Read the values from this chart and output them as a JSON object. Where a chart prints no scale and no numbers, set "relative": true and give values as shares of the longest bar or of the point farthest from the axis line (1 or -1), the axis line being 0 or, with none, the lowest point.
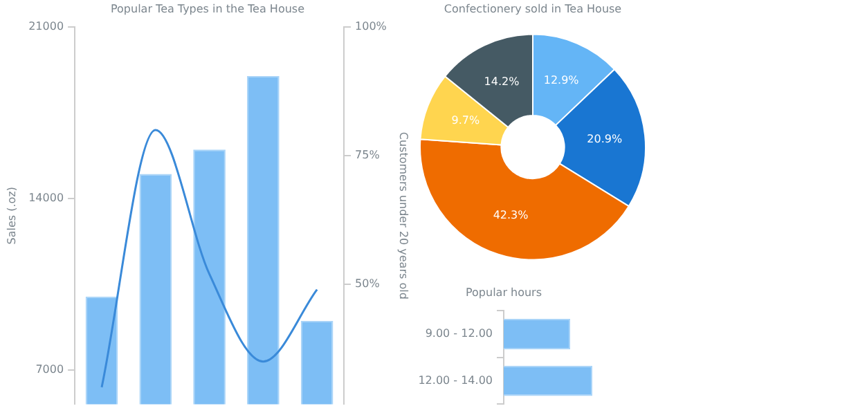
{
  "chart_data": [
    {
      "type": "bar",
      "title": "Popular Tea Types in the Tea House",
      "ylabel": "Sales (.oz)",
      "y2label": "Customers under 20 years old",
      "categories": [
        null,
        null,
        null,
        null,
        null
      ],
      "series": [
        {
          "type": "bar",
          "color": "#7dbef5",
          "values": [
            10000,
            15000,
            16000,
            19000,
            9000
          ]
        },
        {
          "type": "line",
          "axis": "y2",
          "color": "#3a8ad9",
          "values": [
            30,
            80,
            52,
            35,
            49
          ]
        }
      ],
      "ylim": [
        5600,
        21000
      ],
      "yticks": [
        7000,
        14000,
        21000
      ],
      "y2lim": [
        26.7,
        100
      ],
      "y2ticks": [
        {
          "value": 50,
          "label": "50%"
        },
        {
          "value": 75,
          "label": "75%"
        },
        {
          "value": 100,
          "label": "100%"
        }
      ],
      "tick_labels": "y",
      "grid": false,
      "legend": false
    },
    {
      "type": "donut",
      "title": "Confectionery sold in Tea House",
      "categories": [
        null,
        null,
        null,
        null,
        null
      ],
      "values": [
        12.9,
        20.9,
        42.3,
        9.7,
        14.2
      ],
      "colors": [
        "#64b5f6",
        "#1976d2",
        "#ef6c00",
        "#ffd54f",
        "#455a64"
      ],
      "value_labels": [
        "12.9%",
        "20.9%",
        "42.3%",
        "9.7%",
        "14.2%"
      ],
      "legend": false
    },
    {
      "type": "bar",
      "orientation": "horizontal",
      "relative": true,
      "title": "Popular hours",
      "categories": [
        "9.00 - 12.00",
        "12.00 - 14.00"
      ],
      "values": [
        0.75,
        1
      ],
      "color": "#7dbef5",
      "tick_labels": "y",
      "grid": false,
      "legend": false
    }
  ]
}
